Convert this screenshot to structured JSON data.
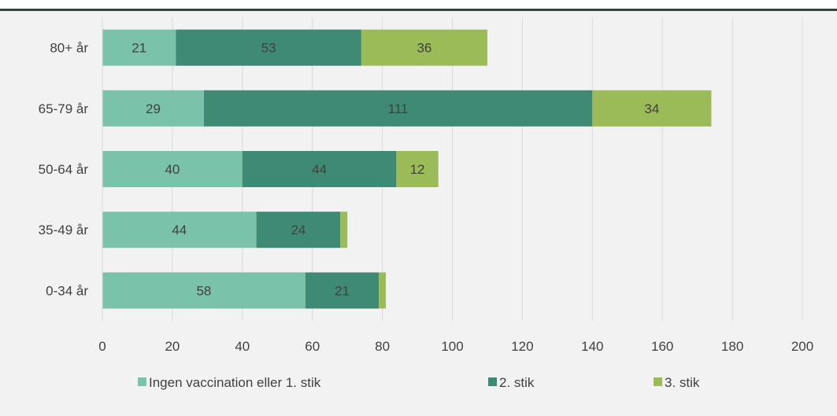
{
  "chart_data": {
    "type": "bar",
    "orientation": "horizontal",
    "stacked": true,
    "categories": [
      "80+ år",
      "65-79 år",
      "50-64 år",
      "35-49 år",
      "0-34 år"
    ],
    "series": [
      {
        "name": "Ingen vaccination eller 1. stik",
        "color": "#7ac3aa",
        "values": [
          21,
          29,
          40,
          44,
          58
        ],
        "labels": [
          "21",
          "29",
          "40",
          "44",
          "58"
        ]
      },
      {
        "name": "2. stik",
        "color": "#3f8a74",
        "values": [
          53,
          111,
          44,
          24,
          21
        ],
        "labels": [
          "53",
          "111",
          "44",
          "24",
          "21"
        ]
      },
      {
        "name": "3. stik",
        "color": "#9bbb59",
        "values": [
          36,
          34,
          12,
          2,
          2
        ],
        "labels": [
          "36",
          "34",
          "12",
          "",
          ""
        ]
      }
    ],
    "xlim": [
      0,
      200
    ],
    "xticks": [
      "0",
      "20",
      "40",
      "60",
      "80",
      "100",
      "120",
      "140",
      "160",
      "180",
      "200"
    ],
    "grid": true,
    "legend_position": "bottom"
  }
}
